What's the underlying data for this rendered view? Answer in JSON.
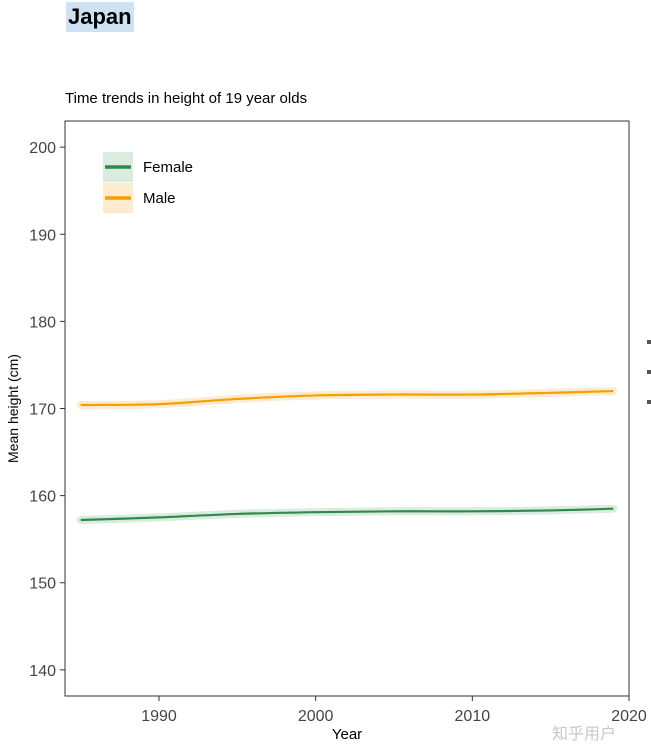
{
  "page": {
    "title": "Japan",
    "subtitle": "Time trends in height of 19 year olds",
    "watermark": "知乎用户"
  },
  "chart_data": {
    "type": "line",
    "title": "Time trends in height of 19 year olds",
    "xlabel": "Year",
    "ylabel": "Mean height (cm)",
    "xlim": [
      1984,
      2020
    ],
    "ylim": [
      137,
      203
    ],
    "x_ticks": [
      1990,
      2000,
      2010,
      2020
    ],
    "y_ticks": [
      140,
      150,
      160,
      170,
      180,
      190,
      200
    ],
    "grid": false,
    "legend_position": "top-left",
    "series": [
      {
        "name": "Female",
        "color": "#2e8b4a",
        "band_color": "#dcebdf",
        "x": [
          1985,
          1990,
          1995,
          2000,
          2005,
          2010,
          2015,
          2019
        ],
        "y": [
          157.2,
          157.5,
          157.9,
          158.1,
          158.2,
          158.2,
          158.3,
          158.5
        ]
      },
      {
        "name": "Male",
        "color": "#f5a000",
        "band_color": "#fdebd0",
        "x": [
          1985,
          1990,
          1995,
          2000,
          2005,
          2010,
          2015,
          2019
        ],
        "y": [
          170.4,
          170.5,
          171.1,
          171.5,
          171.6,
          171.6,
          171.8,
          172.0
        ]
      }
    ]
  }
}
